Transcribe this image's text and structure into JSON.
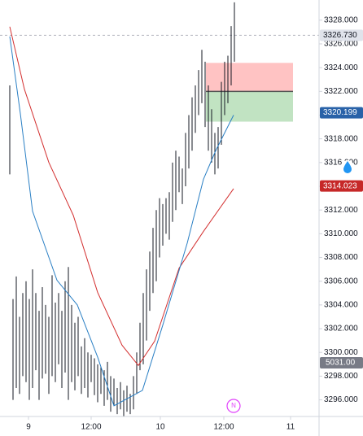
{
  "chart_data": {
    "type": "ohlc",
    "xlim": [
      0,
      96
    ],
    "ylim": [
      3294.6,
      3329.7
    ],
    "xticks": [
      {
        "value": 6.75,
        "label": "9"
      },
      {
        "value": 26,
        "label": "12:00"
      },
      {
        "value": 47.25,
        "label": "10"
      },
      {
        "value": 66.75,
        "label": "12:00"
      },
      {
        "value": 87.25,
        "label": "11"
      }
    ],
    "yticks": [
      {
        "value": 3296,
        "label": "3296.000"
      },
      {
        "value": 3298,
        "label": "3298.000"
      },
      {
        "value": 3300,
        "label": "3300.000"
      },
      {
        "value": 3302,
        "label": "3302.000"
      },
      {
        "value": 3304,
        "label": "3304.000"
      },
      {
        "value": 3306,
        "label": "3306.000"
      },
      {
        "value": 3308,
        "label": "3308.000"
      },
      {
        "value": 3310,
        "label": "3310.000"
      },
      {
        "value": 3312,
        "label": "3312.000"
      },
      {
        "value": 3314,
        "label": "3314.000"
      },
      {
        "value": 3316,
        "label": "3316.000"
      },
      {
        "value": 3318,
        "label": "3318.000"
      },
      {
        "value": 3320,
        "label": "3320.000"
      },
      {
        "value": 3322,
        "label": "3322.000"
      },
      {
        "value": 3324,
        "label": "3324.000"
      },
      {
        "value": 3326,
        "label": "3326.000"
      },
      {
        "value": 3328,
        "label": "3328.000"
      }
    ],
    "bars": {
      "color": "#131722",
      "x": [
        1,
        2,
        3,
        4,
        5,
        6,
        7,
        8,
        9,
        10,
        11,
        12,
        13,
        14,
        15,
        16,
        17,
        18,
        19,
        20,
        21,
        22,
        23,
        24,
        25,
        26,
        27,
        28,
        29,
        30,
        31,
        32,
        33,
        34,
        35,
        36,
        37,
        38,
        39,
        40,
        41,
        42,
        43,
        44,
        45,
        46,
        47,
        48,
        49,
        50,
        51,
        52,
        53,
        54,
        55,
        56,
        57,
        58,
        59,
        60,
        61,
        62,
        63,
        64,
        65,
        66,
        67,
        68,
        69,
        70
      ],
      "low": [
        3315.0,
        3296,
        3297,
        3296.5,
        3298,
        3297.5,
        3296,
        3297,
        3298.5,
        3296,
        3297.8,
        3298.2,
        3296.5,
        3298,
        3297.5,
        3299,
        3297,
        3298.3,
        3296,
        3297.5,
        3296.8,
        3298,
        3296.5,
        3297,
        3296.2,
        3297.5,
        3296.4,
        3295.8,
        3296.5,
        3295.5,
        3296,
        3295,
        3295.5,
        3294.8,
        3295.2,
        3294.6,
        3295,
        3294.8,
        3295.2,
        3296.5,
        3298.5,
        3299,
        3301,
        3303.5,
        3305,
        3306,
        3308,
        3309,
        3310,
        3309.5,
        3311,
        3312,
        3313.5,
        3312.5,
        3314,
        3315.5,
        3317,
        3318.5,
        3320,
        3321,
        3319,
        3317,
        3316,
        3315,
        3315.5,
        3317.5,
        3320,
        3321,
        3322.5,
        3324.5
      ],
      "high": [
        3322.5,
        3304.5,
        3306.4,
        3303,
        3305,
        3306,
        3304.5,
        3307,
        3305,
        3303.5,
        3305.5,
        3304,
        3303,
        3306.5,
        3304.2,
        3305,
        3303.5,
        3306,
        3307.2,
        3304,
        3302.5,
        3303,
        3300.5,
        3301.2,
        3300,
        3299.8,
        3299.5,
        3299,
        3298.8,
        3298.5,
        3299.2,
        3298,
        3297.8,
        3297,
        3297.5,
        3296.8,
        3297.2,
        3296.5,
        3298,
        3300,
        3302.5,
        3305,
        3307,
        3308.5,
        3310.5,
        3312,
        3313,
        3312.5,
        3313,
        3313.5,
        3316,
        3317,
        3316.5,
        3315.5,
        3318.5,
        3320,
        3321.5,
        3322.5,
        3323.8,
        3325.5,
        3324.5,
        3322.5,
        3320.5,
        3318.5,
        3319,
        3322.8,
        3324.5,
        3325,
        3327.5,
        3329.5
      ]
    },
    "lines": [
      {
        "color": "#d32f2f",
        "x": [
          1,
          5.5,
          13,
          20.5,
          28,
          35.5,
          40.5,
          45.5,
          53,
          60.5,
          69.75
        ],
        "values": [
          3327.45,
          3322.18,
          3316.01,
          3311.56,
          3305.05,
          3300.6,
          3298.9,
          3300.95,
          3307.1,
          3310.2,
          3313.8
        ]
      },
      {
        "color": "#2a7fc4",
        "x": [
          1,
          4.25,
          8,
          15.5,
          21.75,
          28,
          33,
          41.75,
          48,
          55.5,
          60.5,
          64.25,
          69.75
        ],
        "values": [
          3326.63,
          3320.12,
          3311.9,
          3306.08,
          3304.0,
          3299.6,
          3295.5,
          3296.8,
          3302.3,
          3309.2,
          3314.6,
          3317.0,
          3320.0
        ]
      }
    ],
    "position": {
      "x": [
        61.25,
        88
      ],
      "stop": 3324.4,
      "entry": 3322,
      "target": 3319.45
    },
    "price_labels": [
      {
        "value": 3326.73,
        "label": "3326.730",
        "color": "#e0e3eb",
        "text_color": "#131722"
      },
      {
        "value": 3320.199,
        "label": "3320.199",
        "color": "#2962a8",
        "text_color": "#ffffff"
      },
      {
        "value": 3314.023,
        "label": "3314.023",
        "color": "#c62828",
        "text_color": "#ffffff"
      }
    ],
    "volume_label": {
      "value": 5031,
      "label": "5031.00"
    },
    "event": {
      "x": 69.75,
      "label": "N"
    }
  }
}
